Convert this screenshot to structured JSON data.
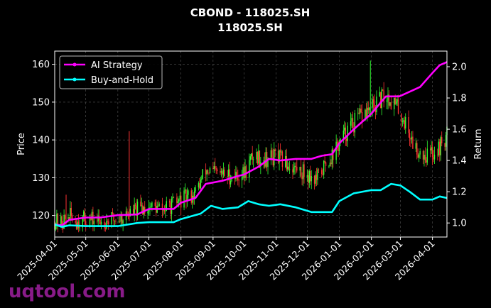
{
  "chart_data": {
    "type": "candlestick+line",
    "title": "CBOND - 118025.SH",
    "subtitle": "118025.SH",
    "ylabel_left": "Price",
    "ylabel_right": "Return",
    "ylim_left": [
      114.3,
      163.5
    ],
    "ylim_right": [
      0.91,
      2.1
    ],
    "yticks_left": [
      120,
      130,
      140,
      150,
      160
    ],
    "yticks_right": [
      1.0,
      1.2,
      1.4,
      1.6,
      1.8,
      2.0
    ],
    "ytick_labels_left": [
      "120",
      "130",
      "140",
      "150",
      "160"
    ],
    "ytick_labels_right": [
      "1.0",
      "1.2",
      "1.4",
      "1.6",
      "1.8",
      "2.0"
    ],
    "xlim": [
      "2025-04-01",
      "2026-04-15"
    ],
    "xticks": [
      "2025-04-01",
      "2025-05-01",
      "2025-06-01",
      "2025-07-01",
      "2025-08-01",
      "2025-09-01",
      "2025-10-01",
      "2025-11-01",
      "2025-12-01",
      "2026-01-01",
      "2026-02-01",
      "2026-03-01",
      "2026-04-01"
    ],
    "grid": true,
    "legend_position": "top-left",
    "legend": [
      {
        "name": "AI Strategy",
        "color": "#ff00ff"
      },
      {
        "name": "Buy-and-Hold",
        "color": "#00ffff"
      }
    ],
    "colors": {
      "up": "#33ff33",
      "down": "#ff3333",
      "strategy": "#ff00ff",
      "hold": "#00ffff"
    },
    "price_close": [
      [
        "2025-04-01",
        118.5
      ],
      [
        "2025-04-08",
        118
      ],
      [
        "2025-04-15",
        120
      ],
      [
        "2025-04-22",
        118.5
      ],
      [
        "2025-05-01",
        119
      ],
      [
        "2025-05-15",
        118.5
      ],
      [
        "2025-05-28",
        119
      ],
      [
        "2025-06-05",
        119.5
      ],
      [
        "2025-06-15",
        121
      ],
      [
        "2025-07-01",
        122.5
      ],
      [
        "2025-07-15",
        121.5
      ],
      [
        "2025-08-01",
        124
      ],
      [
        "2025-08-15",
        126
      ],
      [
        "2025-08-25",
        132
      ],
      [
        "2025-09-05",
        131
      ],
      [
        "2025-09-20",
        130.5
      ],
      [
        "2025-10-01",
        131
      ],
      [
        "2025-10-10",
        136
      ],
      [
        "2025-10-20",
        135
      ],
      [
        "2025-11-01",
        135.5
      ],
      [
        "2025-11-15",
        133
      ],
      [
        "2025-12-01",
        131
      ],
      [
        "2025-12-10",
        129.5
      ],
      [
        "2025-12-20",
        134
      ],
      [
        "2026-01-01",
        139
      ],
      [
        "2026-01-10",
        143
      ],
      [
        "2026-01-25",
        147
      ],
      [
        "2026-02-05",
        149
      ],
      [
        "2026-02-15",
        152
      ],
      [
        "2026-02-25",
        149
      ],
      [
        "2026-03-05",
        145
      ],
      [
        "2026-03-15",
        138
      ],
      [
        "2026-03-25",
        136
      ],
      [
        "2026-04-05",
        137
      ],
      [
        "2026-04-15",
        141
      ]
    ],
    "price_spikes": [
      {
        "date": "2025-06-12",
        "high": 142.3,
        "low": 118.5
      },
      {
        "date": "2026-01-31",
        "high": 161,
        "low": 146
      },
      {
        "date": "2025-04-12",
        "high": 125.5,
        "low": 117.5
      }
    ],
    "series": [
      {
        "name": "AI Strategy",
        "points": [
          [
            "2025-04-01",
            0.99
          ],
          [
            "2025-04-08",
            0.985
          ],
          [
            "2025-04-15",
            1.02
          ],
          [
            "2025-05-01",
            1.035
          ],
          [
            "2025-05-15",
            1.035
          ],
          [
            "2025-06-01",
            1.05
          ],
          [
            "2025-06-20",
            1.055
          ],
          [
            "2025-07-01",
            1.09
          ],
          [
            "2025-07-25",
            1.09
          ],
          [
            "2025-08-01",
            1.13
          ],
          [
            "2025-08-15",
            1.16
          ],
          [
            "2025-08-25",
            1.25
          ],
          [
            "2025-09-10",
            1.27
          ],
          [
            "2025-09-25",
            1.3
          ],
          [
            "2025-10-01",
            1.31
          ],
          [
            "2025-10-15",
            1.36
          ],
          [
            "2025-10-25",
            1.41
          ],
          [
            "2025-11-05",
            1.4
          ],
          [
            "2025-11-20",
            1.41
          ],
          [
            "2025-12-05",
            1.41
          ],
          [
            "2025-12-15",
            1.43
          ],
          [
            "2025-12-25",
            1.44
          ],
          [
            "2026-01-01",
            1.51
          ],
          [
            "2026-01-15",
            1.6
          ],
          [
            "2026-02-01",
            1.7
          ],
          [
            "2026-02-15",
            1.81
          ],
          [
            "2026-02-28",
            1.81
          ],
          [
            "2026-03-10",
            1.84
          ],
          [
            "2026-03-20",
            1.87
          ],
          [
            "2026-04-01",
            1.96
          ],
          [
            "2026-04-08",
            2.01
          ],
          [
            "2026-04-15",
            2.03
          ]
        ]
      },
      {
        "name": "Buy-and-Hold",
        "points": [
          [
            "2025-04-01",
            0.99
          ],
          [
            "2025-04-08",
            0.975
          ],
          [
            "2025-04-15",
            0.985
          ],
          [
            "2025-05-01",
            0.98
          ],
          [
            "2025-05-20",
            0.98
          ],
          [
            "2025-06-01",
            0.98
          ],
          [
            "2025-06-20",
            1.0
          ],
          [
            "2025-07-01",
            1.005
          ],
          [
            "2025-07-25",
            1.005
          ],
          [
            "2025-08-01",
            1.025
          ],
          [
            "2025-08-20",
            1.06
          ],
          [
            "2025-08-30",
            1.11
          ],
          [
            "2025-09-10",
            1.09
          ],
          [
            "2025-09-25",
            1.1
          ],
          [
            "2025-10-05",
            1.14
          ],
          [
            "2025-10-15",
            1.12
          ],
          [
            "2025-10-25",
            1.11
          ],
          [
            "2025-11-05",
            1.12
          ],
          [
            "2025-11-20",
            1.1
          ],
          [
            "2025-12-05",
            1.07
          ],
          [
            "2025-12-15",
            1.07
          ],
          [
            "2025-12-25",
            1.07
          ],
          [
            "2026-01-01",
            1.14
          ],
          [
            "2026-01-15",
            1.19
          ],
          [
            "2026-02-01",
            1.21
          ],
          [
            "2026-02-10",
            1.21
          ],
          [
            "2026-02-20",
            1.25
          ],
          [
            "2026-03-01",
            1.24
          ],
          [
            "2026-03-10",
            1.2
          ],
          [
            "2026-03-20",
            1.15
          ],
          [
            "2026-04-01",
            1.15
          ],
          [
            "2026-04-08",
            1.17
          ],
          [
            "2026-04-15",
            1.16
          ]
        ]
      }
    ]
  },
  "watermark": "uqtool.com"
}
